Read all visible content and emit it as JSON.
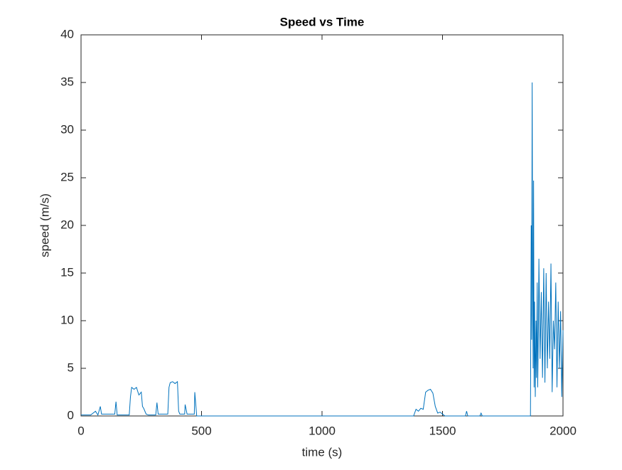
{
  "chart_data": {
    "type": "line",
    "title": "Speed vs Time",
    "xlabel": "time (s)",
    "ylabel": "speed (m/s)",
    "x": [
      0,
      20,
      40,
      60,
      65,
      70,
      80,
      85,
      100,
      140,
      145,
      150,
      200,
      205,
      210,
      220,
      230,
      240,
      250,
      255,
      260,
      270,
      280,
      310,
      315,
      320,
      360,
      365,
      370,
      380,
      390,
      400,
      405,
      410,
      430,
      432,
      440,
      470,
      472,
      480,
      800,
      1380,
      1390,
      1400,
      1410,
      1420,
      1430,
      1440,
      1450,
      1460,
      1470,
      1480,
      1490,
      1500,
      1510,
      1595,
      1600,
      1605,
      1655,
      1660,
      1665,
      1865,
      1868,
      1870,
      1872,
      1874,
      1876,
      1878,
      1880,
      1882,
      1885,
      1888,
      1890,
      1893,
      1895,
      1898,
      1900,
      1905,
      1910,
      1915,
      1920,
      1925,
      1930,
      1935,
      1940,
      1945,
      1950,
      1955,
      1960,
      1965,
      1970,
      1975,
      1980,
      1985,
      1990,
      1995,
      2000
    ],
    "series": [
      {
        "color": "#0072bd",
        "values": [
          0.1,
          0.1,
          0.1,
          0.5,
          0.3,
          0.1,
          1.0,
          0.2,
          0.2,
          0.2,
          1.5,
          0.1,
          0.1,
          2.0,
          3.0,
          2.8,
          3.0,
          2.2,
          2.5,
          1.0,
          0.8,
          0.2,
          0.1,
          0.1,
          1.4,
          0.2,
          0.2,
          3.0,
          3.5,
          3.6,
          3.4,
          3.6,
          0.5,
          0.2,
          0.2,
          1.2,
          0.2,
          0.2,
          2.5,
          0,
          0,
          0,
          0.7,
          0.5,
          0.8,
          0.7,
          2.5,
          2.7,
          2.8,
          2.4,
          1.0,
          0.3,
          0.4,
          0.2,
          0,
          0,
          0.5,
          0,
          0,
          0.3,
          0,
          0,
          20,
          8,
          35,
          15,
          5,
          24.7,
          3,
          12,
          2,
          10,
          4,
          14,
          3,
          9,
          16.5,
          6,
          13,
          4,
          15.5,
          3.5,
          15,
          5,
          12,
          6,
          16,
          2.5,
          10,
          7,
          14,
          3,
          12,
          5,
          11,
          2,
          9
        ]
      }
    ],
    "xlim": [
      0,
      2000
    ],
    "xticks": [
      0,
      500,
      1000,
      1500,
      2000
    ],
    "ylim": [
      0,
      40
    ],
    "yticks": [
      0,
      5,
      10,
      15,
      20,
      25,
      30,
      35,
      40
    ]
  }
}
